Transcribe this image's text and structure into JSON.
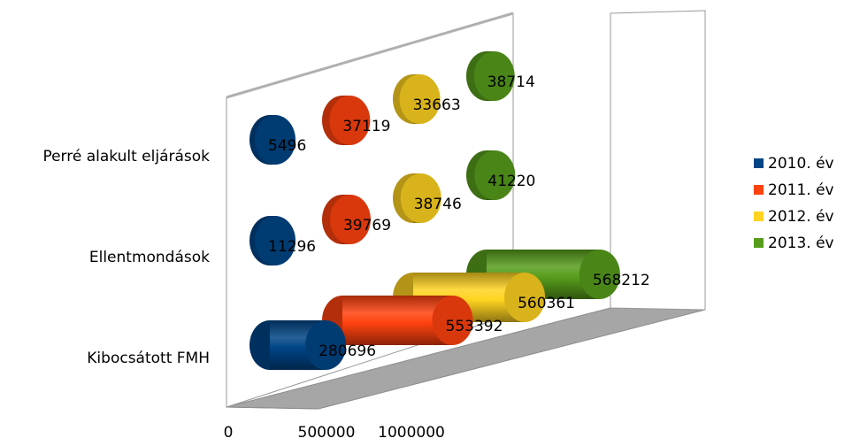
{
  "chart_data": {
    "type": "bar",
    "orientation": "horizontal",
    "style": "3d-cylinder",
    "title": "",
    "xlabel": "",
    "ylabel": "",
    "categories": [
      "Kibocsátott FMH",
      "Ellentmondások",
      "Perré alakult eljárások"
    ],
    "series": [
      {
        "name": "2010. év",
        "color": "#004586",
        "values": [
          280696,
          11296,
          5496
        ]
      },
      {
        "name": "2011. év",
        "color": "#ff420e",
        "values": [
          553392,
          39769,
          37119
        ]
      },
      {
        "name": "2012. év",
        "color": "#ffd320",
        "values": [
          560361,
          38746,
          33663
        ]
      },
      {
        "name": "2013. év",
        "color": "#579d1c",
        "values": [
          568212,
          41220,
          38714
        ]
      }
    ],
    "data_labels": [
      [
        "280696",
        "11296",
        "5496"
      ],
      [
        "553392",
        "39769",
        "37119"
      ],
      [
        "560361",
        "38746",
        "33663"
      ],
      [
        "568212",
        "41220",
        "38714"
      ]
    ],
    "x_ticks": [
      "0",
      "500000",
      "1000000"
    ],
    "xlim": [
      0,
      1000000
    ],
    "grid": false,
    "legend_position": "right"
  }
}
